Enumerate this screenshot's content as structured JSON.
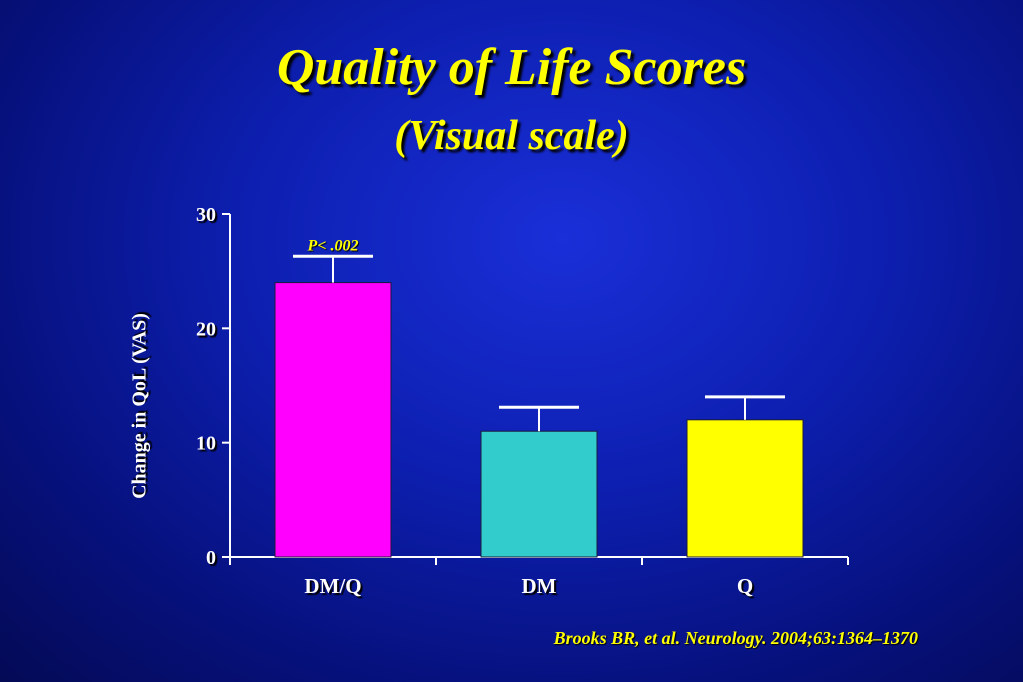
{
  "title": "Quality of Life Scores",
  "subtitle": "(Visual scale)",
  "citation": "Brooks BR, et al. Neurology. 2004;63:1364–1370",
  "colors": {
    "background": "#0d1fb0",
    "title": "#ffff00",
    "text": "#ffffff"
  },
  "chart_data": {
    "type": "bar",
    "categories": [
      "DM/Q",
      "DM",
      "Q"
    ],
    "values": [
      24,
      11,
      12
    ],
    "error_upper": [
      26.3,
      13.1,
      14.0
    ],
    "bar_colors": [
      "#ff00ff",
      "#33cccc",
      "#ffff00"
    ],
    "ylabel": "Change in QoL (VAS)",
    "xlabel": "",
    "ylim": [
      0,
      30
    ],
    "yticks": [
      0,
      10,
      20,
      30
    ],
    "annotation": {
      "text": "P< .002",
      "category": "DM/Q"
    },
    "grid": false,
    "legend": "none"
  }
}
